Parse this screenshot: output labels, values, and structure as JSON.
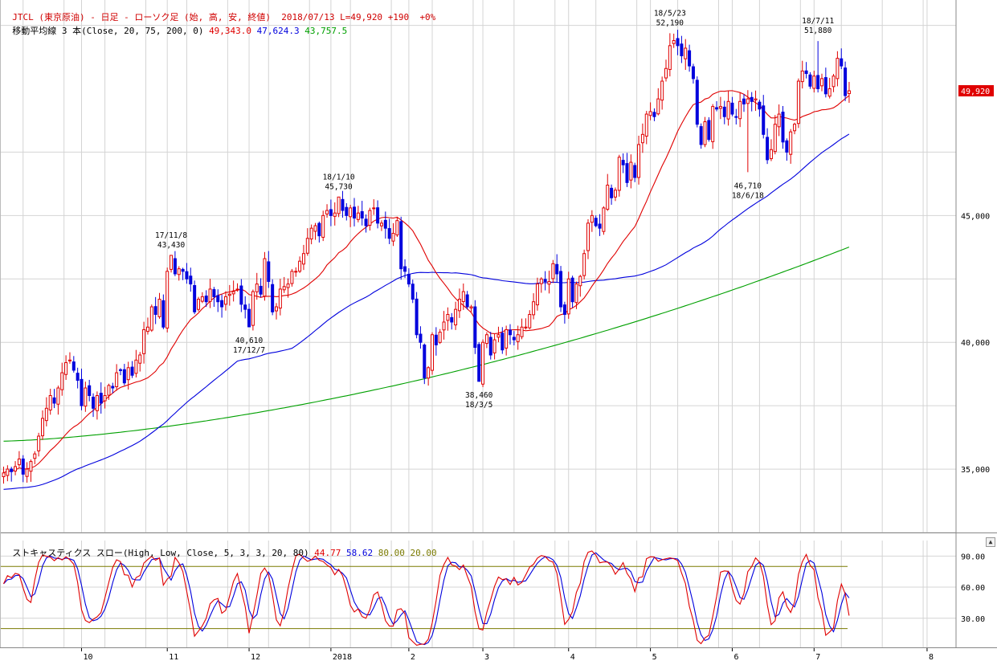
{
  "header": {
    "symbol": "JTCL",
    "title_text": "(東京原油) - 日足 - ローソク足 (始, 高, 安, 終値)",
    "date": "2018/07/13",
    "last": "L=49,920",
    "change": "+190",
    "change_pct": "+0%"
  },
  "ma_legend": {
    "label": "移動平均線 3 本(Close, 20, 75, 200, 0)",
    "values": [
      "49,343.0",
      "47,624.3",
      "43,757.5"
    ],
    "colors": [
      "#e00000",
      "#0000dd",
      "#00a000"
    ]
  },
  "stoch_legend": {
    "label": "ストキャスティクス スロー(High, Low, Close, 5, 3, 3, 20, 80)",
    "values": [
      "44.77",
      "58.62",
      "80.00",
      "20.00"
    ],
    "colors": [
      "#e00000",
      "#0000dd",
      "#7a7a00",
      "#7a7a00"
    ]
  },
  "last_price_tag": "49,920",
  "chart_data": {
    "type": "candlestick",
    "price_axis": {
      "range": [
        32500,
        53500
      ],
      "ticks": [
        35000,
        40000,
        45000
      ],
      "tick_labels": [
        "35,000",
        "40,000",
        "45,000"
      ]
    },
    "stoch_axis": {
      "range": [
        5,
        105
      ],
      "ticks": [
        30,
        60,
        90
      ],
      "tick_labels": [
        "30.00",
        "60.00",
        "90.00"
      ],
      "bands": [
        20,
        80
      ]
    },
    "x_labels": [
      {
        "label": "10",
        "bar": 20
      },
      {
        "label": "11",
        "bar": 42
      },
      {
        "label": "12",
        "bar": 63
      },
      {
        "label": "2018",
        "bar": 84
      },
      {
        "label": "2",
        "bar": 104
      },
      {
        "label": "3",
        "bar": 123
      },
      {
        "label": "4",
        "bar": 145
      },
      {
        "label": "5",
        "bar": 166
      },
      {
        "label": "6",
        "bar": 187
      },
      {
        "label": "7",
        "bar": 208
      },
      {
        "label": "8",
        "bar": 237
      }
    ],
    "close": [
      34850,
      35000,
      34900,
      35100,
      35400,
      34800,
      35000,
      35300,
      35600,
      36300,
      37000,
      37400,
      37900,
      37600,
      38200,
      38800,
      39200,
      39300,
      38900,
      38500,
      37500,
      38200,
      37900,
      37400,
      37900,
      37600,
      37900,
      38300,
      38200,
      38800,
      38900,
      38400,
      39000,
      38700,
      39300,
      39500,
      40500,
      40600,
      41400,
      41100,
      41700,
      40600,
      42800,
      43430,
      42700,
      42900,
      42800,
      42500,
      42300,
      41200,
      41700,
      41800,
      41600,
      42100,
      41800,
      41600,
      41400,
      41800,
      41900,
      42000,
      42100,
      41500,
      41300,
      40610,
      42000,
      42300,
      41900,
      43300,
      42400,
      41200,
      41400,
      42100,
      42200,
      42300,
      42800,
      42800,
      43200,
      43500,
      44100,
      44500,
      44600,
      44200,
      45000,
      45200,
      45000,
      45100,
      45730,
      45200,
      45000,
      45300,
      44900,
      45100,
      44900,
      44600,
      45200,
      45300,
      44700,
      44700,
      44500,
      44100,
      44300,
      44800,
      42900,
      42800,
      42300,
      41700,
      40300,
      40000,
      38600,
      39000,
      40300,
      39900,
      40400,
      40800,
      41100,
      40800,
      41300,
      41700,
      42000,
      41400,
      41400,
      39800,
      38460,
      40000,
      40300,
      39500,
      40100,
      40300,
      39700,
      40500,
      40300,
      40100,
      40300,
      40600,
      40600,
      41100,
      41600,
      42300,
      42500,
      42400,
      42400,
      43100,
      42700,
      41400,
      41100,
      42500,
      41600,
      42300,
      42600,
      43500,
      44700,
      45000,
      44600,
      44500,
      45300,
      46200,
      45700,
      46000,
      47300,
      47000,
      46300,
      47100,
      46500,
      47800,
      48200,
      49000,
      49100,
      48900,
      49600,
      50300,
      50800,
      51700,
      51900,
      51700,
      51300,
      51600,
      50900,
      50400,
      48600,
      47800,
      48700,
      48000,
      49300,
      49200,
      49300,
      48900,
      49500,
      49000,
      48900,
      49500,
      49400,
      49600,
      49500,
      49600,
      49200,
      48200,
      47200,
      47600,
      48600,
      49000,
      47900,
      47500,
      48300,
      48600,
      50300,
      50700,
      50600,
      50100,
      50500,
      50000,
      50400,
      49800,
      50000,
      50500,
      51200,
      50900,
      49730,
      49920
    ],
    "ma20_end": "49,343.0",
    "ma75_end": "47,624.3",
    "ma200_end": "43,757.5",
    "annotations": [
      {
        "bar": 43,
        "price": 43430,
        "date": "17/11/8",
        "value": "43,430",
        "pos": "above"
      },
      {
        "bar": 63,
        "price": 40610,
        "date": "17/12/7",
        "value": "40,610",
        "pos": "below"
      },
      {
        "bar": 86,
        "price": 45730,
        "date": "18/1/10",
        "value": "45,730",
        "pos": "above"
      },
      {
        "bar": 122,
        "price": 38460,
        "date": "18/3/5",
        "value": "38,460",
        "pos": "below"
      },
      {
        "bar": 171,
        "price": 52190,
        "date": "18/5/23",
        "value": "52,190",
        "pos": "above"
      },
      {
        "bar": 191,
        "price": 46710,
        "date": "18/6/18",
        "value": "46,710",
        "pos": "below"
      },
      {
        "bar": 209,
        "price": 51880,
        "date": "18/7/11",
        "value": "51,880",
        "pos": "above"
      }
    ],
    "colors": {
      "up": "#e00000",
      "down": "#0000dd",
      "ma20": "#e00000",
      "ma75": "#0000dd",
      "ma200": "#00a000",
      "band": "#7a7a00",
      "grid": "#d4d4d4"
    }
  }
}
